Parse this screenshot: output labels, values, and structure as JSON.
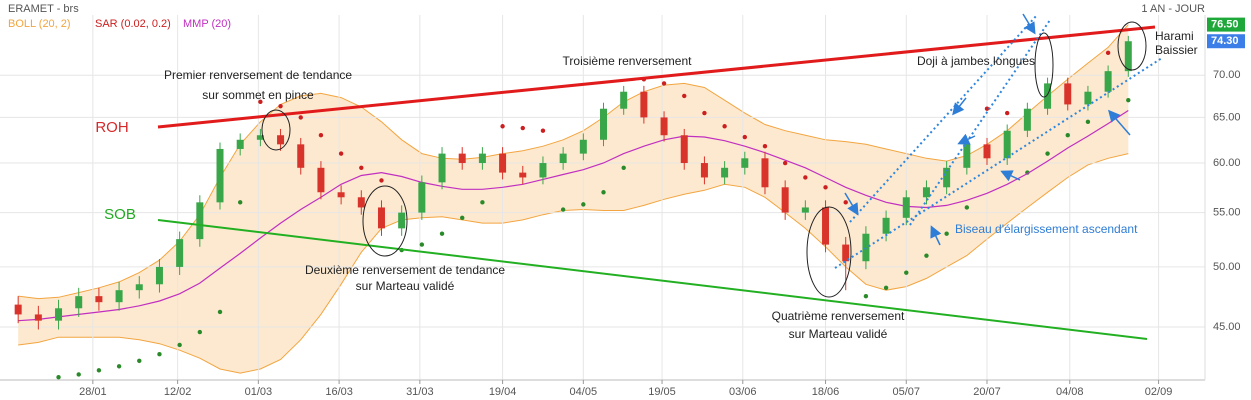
{
  "chart_data": {
    "type": "candlestick",
    "title": "ERAMET - brs",
    "subtitle": "1 AN - JOUR",
    "log_y": true,
    "grid": true,
    "ylim": [
      41,
      77.8
    ],
    "yticks": [
      {
        "value": 45,
        "label": "45.00"
      },
      {
        "value": 50,
        "label": "50.00"
      },
      {
        "value": 55,
        "label": "55.00"
      },
      {
        "value": 60,
        "label": "60.00"
      },
      {
        "value": 65,
        "label": "65.00"
      },
      {
        "value": 70,
        "label": "70.00"
      }
    ],
    "xlim": [
      -0.9,
      58.8
    ],
    "xticks": [
      {
        "value": 3.7,
        "label": "28/01"
      },
      {
        "value": 7.9,
        "label": "12/02"
      },
      {
        "value": 11.9,
        "label": "01/03"
      },
      {
        "value": 15.9,
        "label": "16/03"
      },
      {
        "value": 19.9,
        "label": "31/03"
      },
      {
        "value": 24.0,
        "label": "19/04"
      },
      {
        "value": 28.0,
        "label": "04/05"
      },
      {
        "value": 31.9,
        "label": "19/05"
      },
      {
        "value": 35.9,
        "label": "03/06"
      },
      {
        "value": 40.0,
        "label": "18/06"
      },
      {
        "value": 44.0,
        "label": "05/07"
      },
      {
        "value": 48.0,
        "label": "20/07"
      },
      {
        "value": 52.1,
        "label": "04/08"
      },
      {
        "value": 56.5,
        "label": "02/09"
      }
    ],
    "candles": {
      "up_color": "#3aa64a",
      "down_color": "#d9342b",
      "open": [
        46.8,
        46.0,
        45.5,
        46.5,
        47.5,
        47.0,
        48.0,
        48.5,
        50.0,
        52.5,
        56.0,
        61.5,
        62.5,
        63.0,
        62.0,
        59.5,
        57.0,
        56.5,
        55.5,
        53.5,
        55.0,
        58.0,
        61.0,
        60.0,
        61.0,
        59.0,
        58.5,
        60.0,
        61.0,
        62.5,
        66.0,
        68.0,
        65.0,
        63.0,
        60.0,
        58.5,
        59.5,
        60.5,
        57.5,
        55.0,
        55.5,
        52.0,
        50.5,
        53.0,
        54.5,
        56.5,
        57.5,
        59.5,
        62.0,
        60.5,
        63.5,
        66.0,
        69.0,
        66.5,
        68.0,
        70.5
      ],
      "high": [
        47.5,
        46.7,
        47.2,
        48.2,
        48.2,
        48.7,
        49.2,
        50.7,
        53.2,
        56.7,
        62.2,
        63.2,
        63.7,
        63.7,
        62.7,
        60.2,
        57.7,
        57.2,
        56.2,
        55.7,
        58.7,
        61.7,
        61.7,
        61.7,
        61.7,
        59.7,
        60.7,
        61.7,
        63.2,
        66.7,
        68.7,
        68.7,
        65.7,
        63.7,
        60.7,
        60.2,
        61.2,
        61.2,
        58.2,
        56.2,
        56.2,
        52.7,
        53.7,
        55.2,
        57.2,
        58.2,
        60.2,
        62.7,
        62.7,
        64.2,
        66.7,
        69.7,
        69.7,
        68.7,
        71.2,
        75.0
      ],
      "low": [
        45.3,
        44.8,
        44.8,
        45.8,
        46.3,
        46.3,
        47.3,
        47.8,
        49.3,
        51.8,
        55.3,
        60.8,
        61.8,
        61.3,
        58.8,
        56.3,
        55.8,
        54.8,
        52.8,
        52.8,
        54.3,
        57.3,
        59.3,
        59.3,
        58.3,
        57.8,
        57.8,
        59.3,
        60.3,
        61.8,
        65.3,
        64.3,
        62.3,
        59.3,
        57.8,
        57.8,
        58.8,
        56.8,
        54.3,
        54.3,
        51.3,
        48.0,
        49.8,
        52.3,
        53.8,
        55.8,
        56.8,
        58.8,
        59.8,
        59.8,
        62.8,
        65.3,
        65.8,
        65.8,
        67.3,
        69.8
      ],
      "close": [
        46.0,
        45.5,
        46.5,
        47.5,
        47.0,
        48.0,
        48.5,
        50.0,
        52.5,
        56.0,
        61.5,
        62.5,
        63.0,
        62.0,
        59.5,
        57.0,
        56.5,
        55.5,
        53.5,
        55.0,
        58.0,
        61.0,
        60.0,
        61.0,
        59.0,
        58.5,
        60.0,
        61.0,
        62.5,
        66.0,
        68.0,
        65.0,
        63.0,
        60.0,
        58.5,
        59.5,
        60.5,
        57.5,
        55.0,
        55.5,
        52.0,
        50.5,
        53.0,
        54.5,
        56.5,
        57.5,
        59.5,
        62.0,
        60.5,
        63.5,
        66.0,
        69.0,
        66.5,
        68.0,
        70.5,
        74.3
      ]
    },
    "indicators": [
      {
        "name": "BOLL (20, 2)",
        "color": "#f2a540",
        "fill": "#fde9cf",
        "upper": [
          47.5,
          47.3,
          47.4,
          47.8,
          48.2,
          48.7,
          49.5,
          50.6,
          52.3,
          54.8,
          58.5,
          62.0,
          64.5,
          66.5,
          67.5,
          67.8,
          67.3,
          66.2,
          64.5,
          62.5,
          61.0,
          60.5,
          60.4,
          60.6,
          61.0,
          61.3,
          61.8,
          62.5,
          63.5,
          65.0,
          66.8,
          68.0,
          68.8,
          69.0,
          68.5,
          67.0,
          65.5,
          64.2,
          63.5,
          63.0,
          62.5,
          62.3,
          62.0,
          61.5,
          61.0,
          60.5,
          60.2,
          60.8,
          62.0,
          63.5,
          65.5,
          67.5,
          69.5,
          71.5,
          73.5,
          76.5
        ],
        "lower": [
          43.6,
          43.8,
          44.2,
          44.2,
          44.2,
          44.2,
          44.0,
          43.7,
          43.2,
          42.6,
          41.8,
          41.5,
          41.8,
          42.5,
          44.0,
          46.0,
          48.5,
          51.3,
          53.5,
          54.3,
          54.5,
          54.6,
          54.3,
          54.0,
          54.0,
          54.3,
          54.8,
          55.2,
          55.3,
          55.2,
          55.2,
          55.7,
          56.3,
          56.8,
          57.2,
          57.8,
          57.5,
          56.5,
          55.0,
          53.5,
          51.8,
          50.0,
          48.5,
          48.0,
          48.3,
          49.0,
          50.0,
          51.0,
          52.5,
          54.0,
          55.5,
          57.0,
          58.5,
          59.8,
          60.5,
          61.0
        ]
      },
      {
        "name": "SAR (0.02, 0.2)",
        "color": "#cc1f1f",
        "below_color": "#2a8a2a",
        "values": [
          null,
          null,
          41.2,
          41.4,
          41.7,
          42.0,
          42.4,
          42.9,
          43.6,
          44.6,
          46.2,
          56.0,
          66.8,
          66.3,
          65.0,
          63.0,
          61.0,
          59.5,
          58.2,
          51.5,
          52.0,
          53.0,
          54.5,
          56.0,
          64.0,
          63.8,
          63.5,
          55.3,
          55.8,
          57.0,
          59.5,
          69.5,
          69.0,
          67.5,
          65.5,
          64.0,
          62.8,
          61.8,
          60.0,
          58.5,
          57.5,
          56.0,
          47.5,
          48.2,
          49.5,
          51.0,
          53.0,
          55.5,
          66.0,
          65.5,
          59.0,
          61.0,
          63.0,
          64.5,
          72.8,
          67.0
        ]
      },
      {
        "name": "MMP (20)",
        "color": "#c12fc1",
        "values": [
          45.5,
          45.6,
          45.8,
          46.0,
          46.2,
          46.4,
          46.7,
          47.1,
          47.7,
          48.6,
          49.9,
          51.2,
          52.6,
          54.0,
          55.3,
          56.5,
          57.8,
          58.7,
          59.0,
          58.6,
          58.0,
          57.6,
          57.3,
          57.3,
          57.5,
          57.8,
          58.3,
          58.8,
          59.3,
          60.0,
          61.0,
          61.8,
          62.5,
          62.9,
          62.8,
          62.4,
          61.8,
          61.1,
          60.3,
          59.5,
          58.5,
          57.5,
          56.7,
          56.0,
          55.6,
          55.5,
          55.7,
          56.2,
          56.9,
          57.8,
          58.9,
          60.2,
          61.6,
          62.9,
          64.3,
          65.8
        ]
      }
    ],
    "price_tags": [
      {
        "value": 76.5,
        "label": "76.50",
        "color": "#1fa83a"
      },
      {
        "value": 74.3,
        "label": "74.30",
        "color": "#3b7ee8"
      }
    ],
    "trend_labels": [
      {
        "text": "ROH",
        "color": "#d42a2a"
      },
      {
        "text": "SOB",
        "color": "#22aa22"
      }
    ],
    "annotations": [
      "Premier renversement de tendance",
      "sur sommet en pince",
      "Troisième renversement",
      "Doji à jambes longues",
      "Harami",
      "Baissier",
      "Deuxième renversement de tendance",
      "sur Marteau validé",
      "Quatrième renversement",
      "sur Marteau validé",
      "Biseau d'élargissement ascendant"
    ]
  }
}
